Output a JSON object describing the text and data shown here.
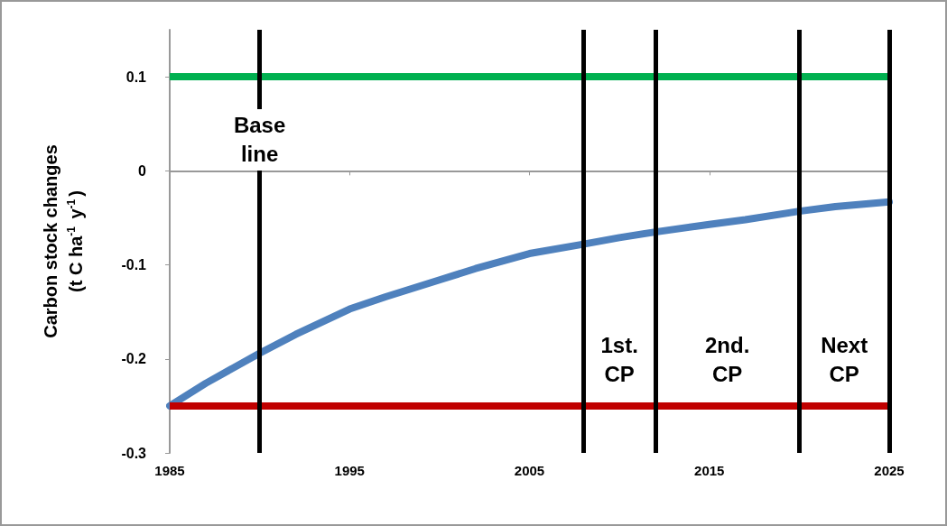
{
  "chart_data": {
    "type": "line",
    "ylabel": "Carbon stock changes\n(t C ha$^{-1}$ y$^{-1}$)",
    "x": [
      1985,
      1987,
      1990,
      1992,
      1995,
      1997,
      2000,
      2002,
      2005,
      2008,
      2010,
      2012,
      2015,
      2017,
      2020,
      2022,
      2025
    ],
    "series": [
      {
        "color": "#4f81bd",
        "values": [
          -0.25,
          -0.226,
          -0.194,
          -0.174,
          -0.147,
          -0.134,
          -0.116,
          -0.104,
          -0.088,
          -0.078,
          -0.071,
          -0.065,
          -0.057,
          -0.052,
          -0.043,
          -0.038,
          -0.033
        ]
      }
    ],
    "xlim": [
      1985,
      2025
    ],
    "xticks": [
      1985,
      1995,
      2005,
      2015,
      2025
    ],
    "ylim": [
      -0.3,
      0.15
    ],
    "yticks": [
      -0.3,
      -0.2,
      -0.1,
      0,
      0.1
    ],
    "grid": false,
    "marker": "none",
    "ref_lines": [
      {
        "axis": "y",
        "value": 0.1,
        "color": "#00b050"
      },
      {
        "axis": "y",
        "value": -0.25,
        "color": "#c00000"
      },
      {
        "axis": "x",
        "value": 1990,
        "color": "#000000"
      },
      {
        "axis": "x",
        "value": 2008,
        "color": "#000000"
      },
      {
        "axis": "x",
        "value": 2012,
        "color": "#000000"
      },
      {
        "axis": "x",
        "value": 2020,
        "color": "#000000"
      },
      {
        "axis": "x",
        "value": 2025,
        "color": "#000000"
      }
    ],
    "annotations": [
      "Base\nline",
      "1st.\nCP",
      "2nd.\nCP",
      "Next\nCP"
    ]
  }
}
